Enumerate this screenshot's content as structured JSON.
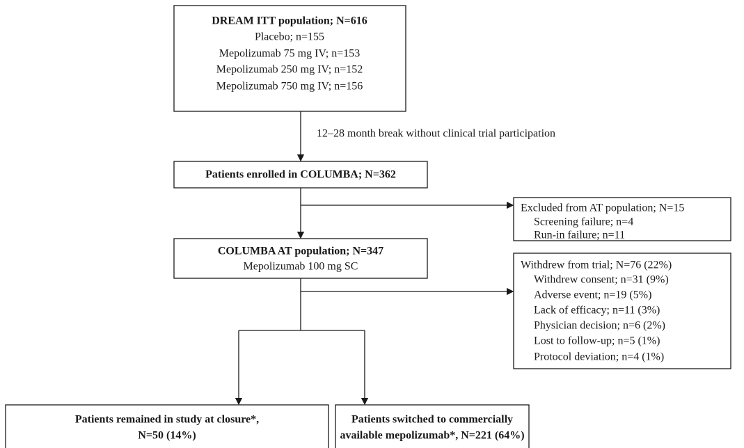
{
  "nodes": [
    {
      "title": "DREAM ITT population; N=616",
      "lines": [
        "Placebo; n=155",
        "Mepolizumab 75 mg IV; n=153",
        "Mepolizumab 250 mg IV; n=152",
        "Mepolizumab 750 mg IV; n=156"
      ]
    },
    {
      "title": "Patients enrolled in COLUMBA; N=362"
    },
    {
      "title": "COLUMBA AT population; N=347",
      "lines": [
        "Mepolizumab 100 mg SC"
      ]
    },
    {
      "title": "Excluded from AT population; N=15",
      "lines": [
        "Screening failure; n=4",
        "Run-in failure; n=11"
      ]
    },
    {
      "title": "Withdrew from trial; N=76 (22%)",
      "lines": [
        "Withdrew consent; n=31 (9%)",
        "Adverse event; n=19 (5%)",
        "Lack of efficacy; n=11 (3%)",
        "Physician decision; n=6 (2%)",
        "Lost to follow-up; n=5 (1%)",
        "Protocol deviation; n=4 (1%)"
      ]
    },
    {
      "lines": [
        "Patients remained in study at closure*,",
        "N=50 (14%)"
      ]
    },
    {
      "lines": [
        "Patients switched to commercially",
        "available mepolizumab*, N=221 (64%)"
      ]
    }
  ],
  "edges": [
    {
      "label": "12–28 month break without clinical trial participation"
    }
  ]
}
